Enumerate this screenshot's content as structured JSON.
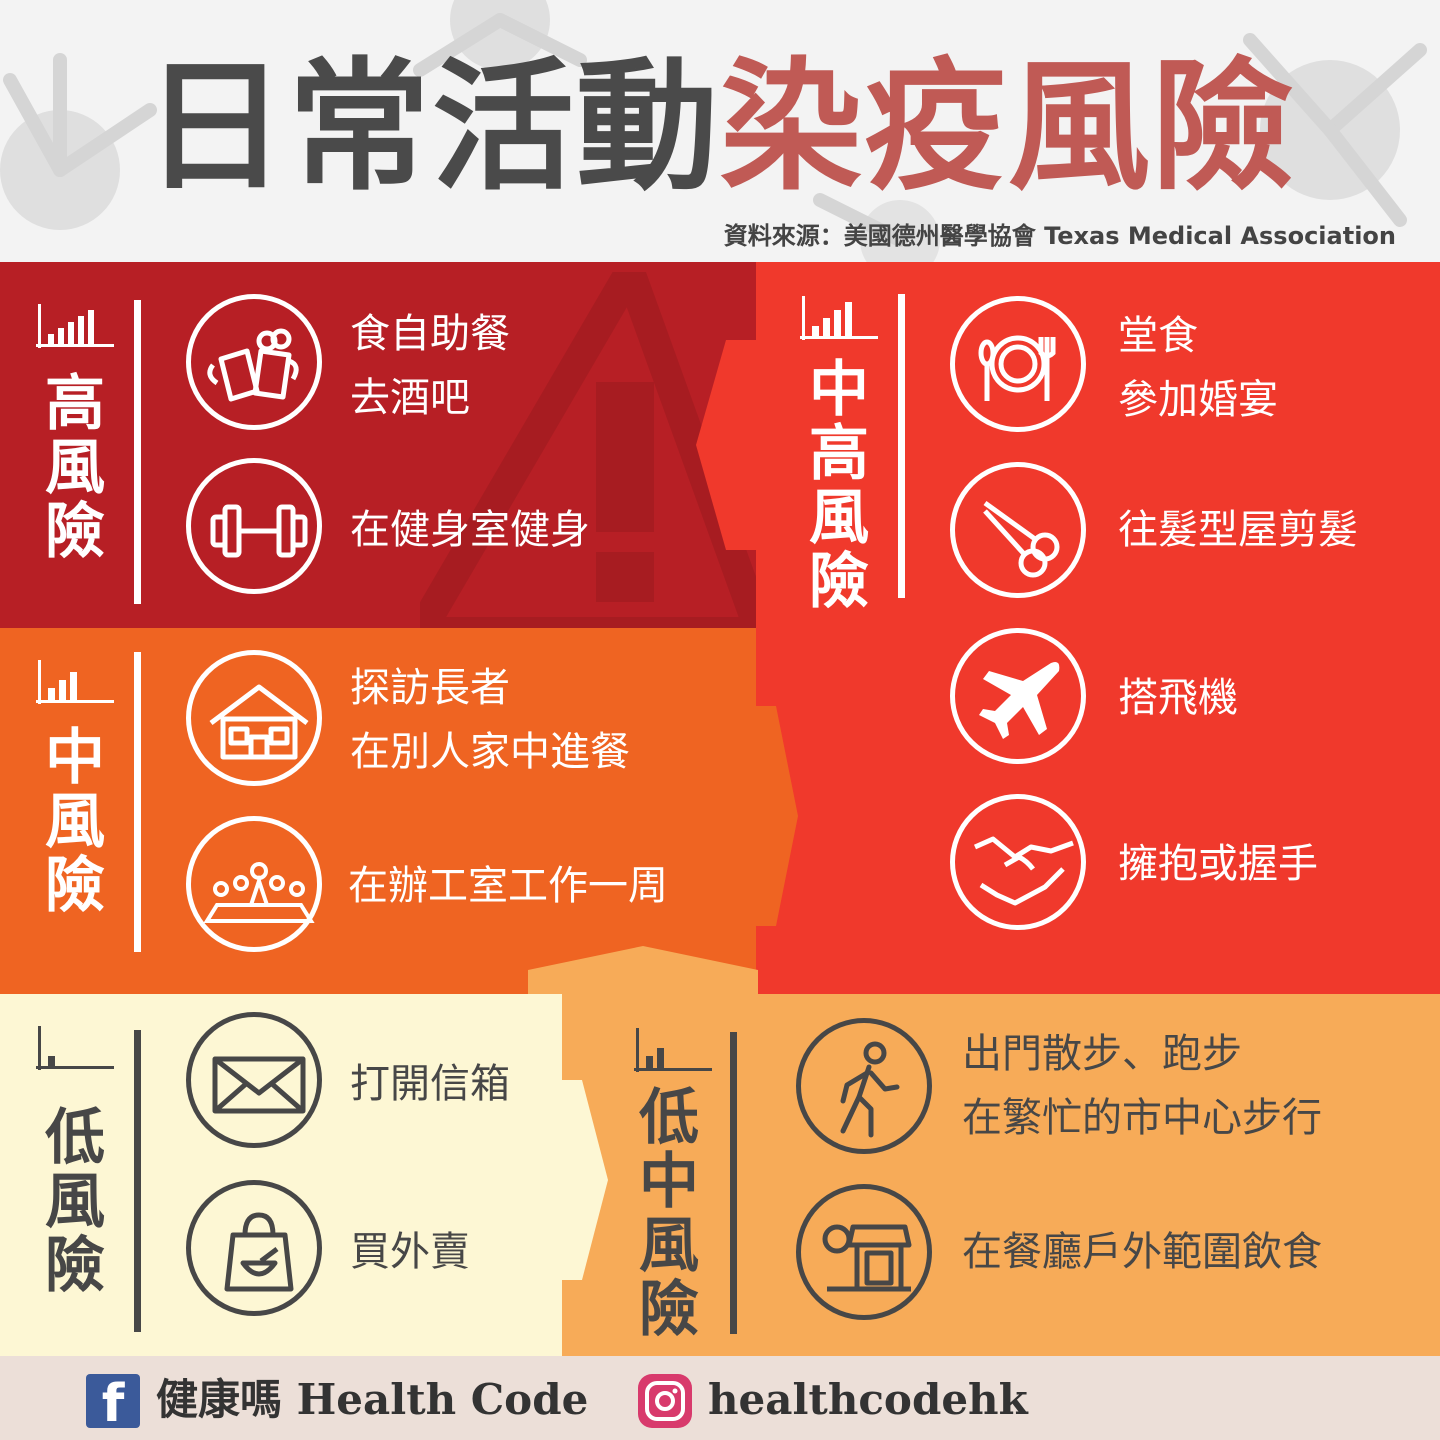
{
  "title": {
    "part1": "日常活動",
    "part2": "染疫風險"
  },
  "source": "資料來源：美國德州醫學協會 Texas Medical Association",
  "levels": {
    "high": {
      "name": [
        "高",
        "風",
        "險"
      ],
      "items": [
        {
          "icon": "beer-mugs-icon",
          "lines": [
            "食自助餐",
            "去酒吧"
          ]
        },
        {
          "icon": "dumbbell-icon",
          "lines": [
            "在健身室健身"
          ]
        }
      ]
    },
    "mid_high": {
      "name": [
        "中",
        "高",
        "風",
        "險"
      ],
      "items": [
        {
          "icon": "plate-fork-knife-icon",
          "lines": [
            "堂食",
            "參加婚宴"
          ]
        },
        {
          "icon": "scissors-icon",
          "lines": [
            "往髮型屋剪髮"
          ]
        },
        {
          "icon": "airplane-icon",
          "lines": [
            "搭飛機"
          ]
        },
        {
          "icon": "handshake-icon",
          "lines": [
            "擁抱或握手"
          ]
        }
      ]
    },
    "mid": {
      "name": [
        "中",
        "風",
        "險"
      ],
      "items": [
        {
          "icon": "house-icon",
          "lines": [
            "探訪長者",
            "在別人家中進餐"
          ]
        },
        {
          "icon": "meeting-table-icon",
          "lines": [
            "在辦工室工作一周"
          ]
        }
      ]
    },
    "low": {
      "name": [
        "低",
        "風",
        "險"
      ],
      "items": [
        {
          "icon": "envelope-icon",
          "lines": [
            "打開信箱"
          ]
        },
        {
          "icon": "takeaway-bag-icon",
          "lines": [
            "買外賣"
          ]
        }
      ]
    },
    "low_mid": {
      "name": [
        "低",
        "中",
        "風",
        "險"
      ],
      "items": [
        {
          "icon": "walking-person-icon",
          "lines": [
            "出門散步、跑步",
            "在繁忙的市中心步行"
          ]
        },
        {
          "icon": "outdoor-restaurant-icon",
          "lines": [
            "在餐廳戶外範圍飲食"
          ]
        }
      ]
    }
  },
  "colors": {
    "high": "#b71f25",
    "mid_high": "#f0392c",
    "mid": "#ef6422",
    "low": "#fdf7d4",
    "low_mid": "#f7ab58",
    "title_dark": "#4a4a4a",
    "title_red": "#c05a55"
  },
  "footer": {
    "facebook_icon": "f",
    "facebook_label": "健康嗎 Health Code",
    "instagram_label": "healthcodehk"
  }
}
